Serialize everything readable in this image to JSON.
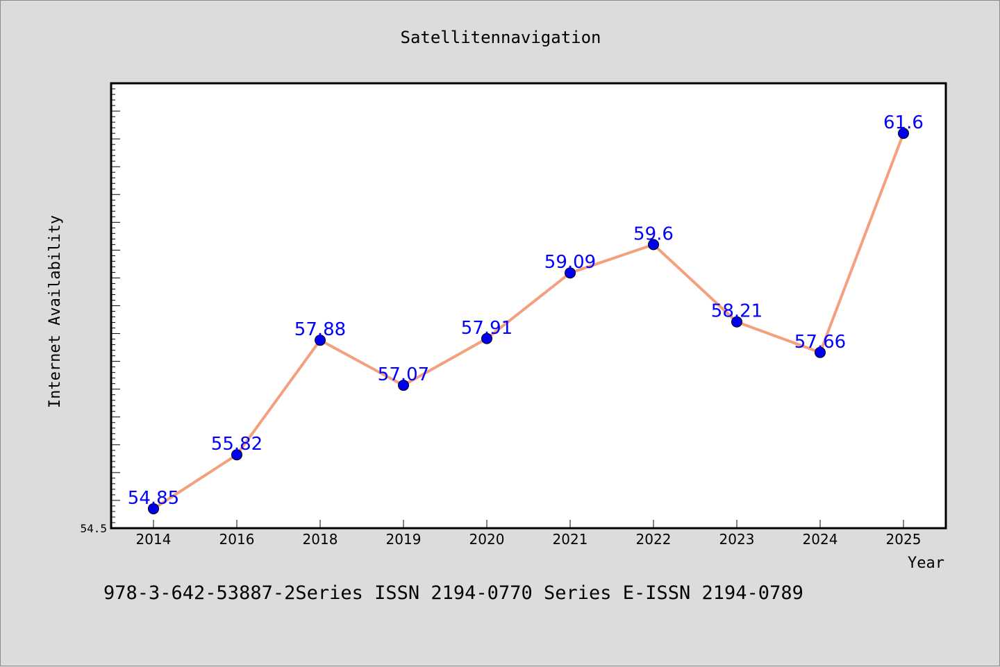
{
  "chart_data": {
    "type": "line",
    "title": "Satellitennavigation",
    "xlabel": "Year",
    "ylabel": "Internet Availability",
    "categories": [
      "2014",
      "2016",
      "2018",
      "2019",
      "2020",
      "2021",
      "2022",
      "2023",
      "2024",
      "2025"
    ],
    "series": [
      {
        "values": [
          54.85,
          55.82,
          57.88,
          57.07,
          57.91,
          59.09,
          59.6,
          58.21,
          57.66,
          61.6
        ],
        "data_labels": [
          "54.85",
          "55.82",
          "57.88",
          "57.07",
          "57.91",
          "59.09",
          "59.6",
          "58.21",
          "57.66",
          "61.6"
        ],
        "line_color": "#f4a07e",
        "marker_color": "#0000ee",
        "label_color": "#0000ff"
      }
    ],
    "ylim": [
      54.5,
      62.5
    ],
    "yticks_labeled": [
      "54.5"
    ],
    "grid": false,
    "legend": "none"
  },
  "footer": {
    "text": "978-3-642-53887-2Series ISSN 2194-0770 Series E-ISSN 2194-0789"
  },
  "colors": {
    "background": "#dcdcdc",
    "plot_background": "#ffffff",
    "axis": "#000000"
  }
}
